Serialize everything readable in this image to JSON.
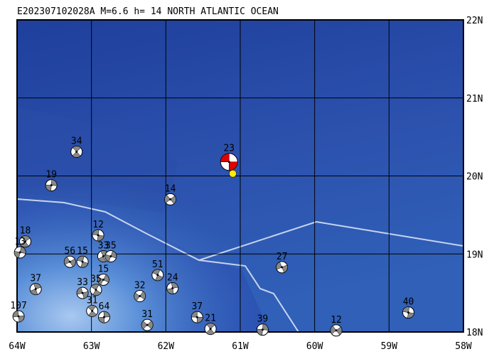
{
  "map": {
    "title": "E202307102028A M=6.6 h= 14 NORTH ATLANTIC OCEAN",
    "xlim": [
      -64,
      -58
    ],
    "ylim": [
      18,
      22
    ],
    "xticks": [
      {
        "value": -64,
        "label": "64W"
      },
      {
        "value": -63,
        "label": "63W"
      },
      {
        "value": -62,
        "label": "62W"
      },
      {
        "value": -61,
        "label": "61W"
      },
      {
        "value": -60,
        "label": "60W"
      },
      {
        "value": -59,
        "label": "59W"
      },
      {
        "value": -58,
        "label": "58W"
      }
    ],
    "yticks": [
      {
        "value": 22,
        "label": "22N"
      },
      {
        "value": 21,
        "label": "21N"
      },
      {
        "value": 20,
        "label": "20N"
      },
      {
        "value": 19,
        "label": "19N"
      },
      {
        "value": 18,
        "label": "18N"
      }
    ],
    "main_event": {
      "label": "23",
      "lon": -61.15,
      "lat": 20.18,
      "color": "#e00000"
    },
    "epicenter": {
      "lon": -61.1,
      "lat": 20.03,
      "color": "#ffee00"
    },
    "events": [
      {
        "label": "34",
        "lon": -63.2,
        "lat": 20.31
      },
      {
        "label": "19",
        "lon": -63.54,
        "lat": 19.88
      },
      {
        "label": "14",
        "lon": -61.94,
        "lat": 19.7
      },
      {
        "label": "12",
        "lon": -62.91,
        "lat": 19.24
      },
      {
        "label": "18",
        "lon": -63.89,
        "lat": 19.16
      },
      {
        "label": "13",
        "lon": -63.96,
        "lat": 19.02
      },
      {
        "label": "56",
        "lon": -63.29,
        "lat": 18.9
      },
      {
        "label": "15",
        "lon": -63.12,
        "lat": 18.9
      },
      {
        "label": "33",
        "lon": -62.84,
        "lat": 18.97
      },
      {
        "label": "35",
        "lon": -62.74,
        "lat": 18.97
      },
      {
        "label": "27",
        "lon": -60.44,
        "lat": 18.83
      },
      {
        "label": "51",
        "lon": -62.11,
        "lat": 18.73
      },
      {
        "label": "37",
        "lon": -63.75,
        "lat": 18.55
      },
      {
        "label": "15",
        "lon": -62.84,
        "lat": 18.67
      },
      {
        "label": "33",
        "lon": -63.12,
        "lat": 18.5
      },
      {
        "label": "35",
        "lon": -62.94,
        "lat": 18.54
      },
      {
        "label": "24",
        "lon": -61.91,
        "lat": 18.56
      },
      {
        "label": "32",
        "lon": -62.35,
        "lat": 18.46
      },
      {
        "label": "107",
        "lon": -63.98,
        "lat": 18.2
      },
      {
        "label": "31",
        "lon": -62.99,
        "lat": 18.27
      },
      {
        "label": "64",
        "lon": -62.83,
        "lat": 18.19
      },
      {
        "label": "31",
        "lon": -62.25,
        "lat": 18.09
      },
      {
        "label": "37",
        "lon": -61.58,
        "lat": 18.19
      },
      {
        "label": "21",
        "lon": -61.4,
        "lat": 18.04
      },
      {
        "label": "39",
        "lon": -60.7,
        "lat": 18.03
      },
      {
        "label": "12",
        "lon": -59.71,
        "lat": 18.02
      },
      {
        "label": "40",
        "lon": -58.74,
        "lat": 18.25
      }
    ]
  }
}
